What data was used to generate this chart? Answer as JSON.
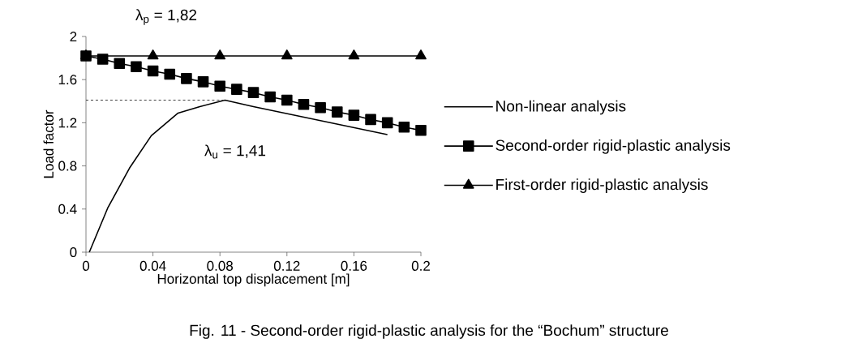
{
  "chart_data": {
    "type": "line",
    "xlabel": "Horizontal top displacement [m]",
    "ylabel": "Load factor",
    "xlim": [
      0,
      0.2
    ],
    "xticks": [
      0,
      0.04,
      0.08,
      0.12,
      0.16,
      0.2
    ],
    "ylim": [
      0,
      2
    ],
    "yticks": [
      0,
      0.4,
      0.8,
      1.2,
      1.6,
      2
    ],
    "series": [
      {
        "name": "Non-linear analysis",
        "color": "#000000",
        "marker": "none",
        "x": [
          0.002,
          0.013,
          0.026,
          0.039,
          0.055,
          0.068,
          0.083,
          0.1,
          0.14,
          0.18
        ],
        "values": [
          0,
          0.41,
          0.78,
          1.08,
          1.29,
          1.35,
          1.41,
          1.35,
          1.22,
          1.09
        ]
      },
      {
        "name": "Second-order rigid-plastic analysis",
        "color": "#000000",
        "marker": "square",
        "x": [
          0,
          0.01,
          0.02,
          0.03,
          0.04,
          0.05,
          0.06,
          0.07,
          0.08,
          0.09,
          0.1,
          0.11,
          0.12,
          0.13,
          0.14,
          0.15,
          0.16,
          0.17,
          0.18,
          0.19,
          0.2
        ],
        "values": [
          1.82,
          1.79,
          1.75,
          1.72,
          1.68,
          1.65,
          1.61,
          1.58,
          1.54,
          1.51,
          1.48,
          1.44,
          1.41,
          1.37,
          1.34,
          1.3,
          1.27,
          1.23,
          1.2,
          1.16,
          1.13
        ]
      },
      {
        "name": "First-order rigid-plastic analysis",
        "color": "#000000",
        "marker": "triangle",
        "x": [
          0,
          0.04,
          0.08,
          0.12,
          0.16,
          0.2
        ],
        "values": [
          1.82,
          1.82,
          1.82,
          1.82,
          1.82,
          1.82
        ]
      }
    ],
    "ref_lines": [
      {
        "axis": "y",
        "value": 1.41,
        "color": "#404040",
        "line_style": "dashed"
      }
    ],
    "annotations": [
      "λ$_{p}$ = 1,82",
      "λ$_{u}$ = 1,41",
      "Fig. 11 - Second-order rigid-plastic analysis for the “Bochum” structure"
    ],
    "legend": "right",
    "grid": false
  }
}
